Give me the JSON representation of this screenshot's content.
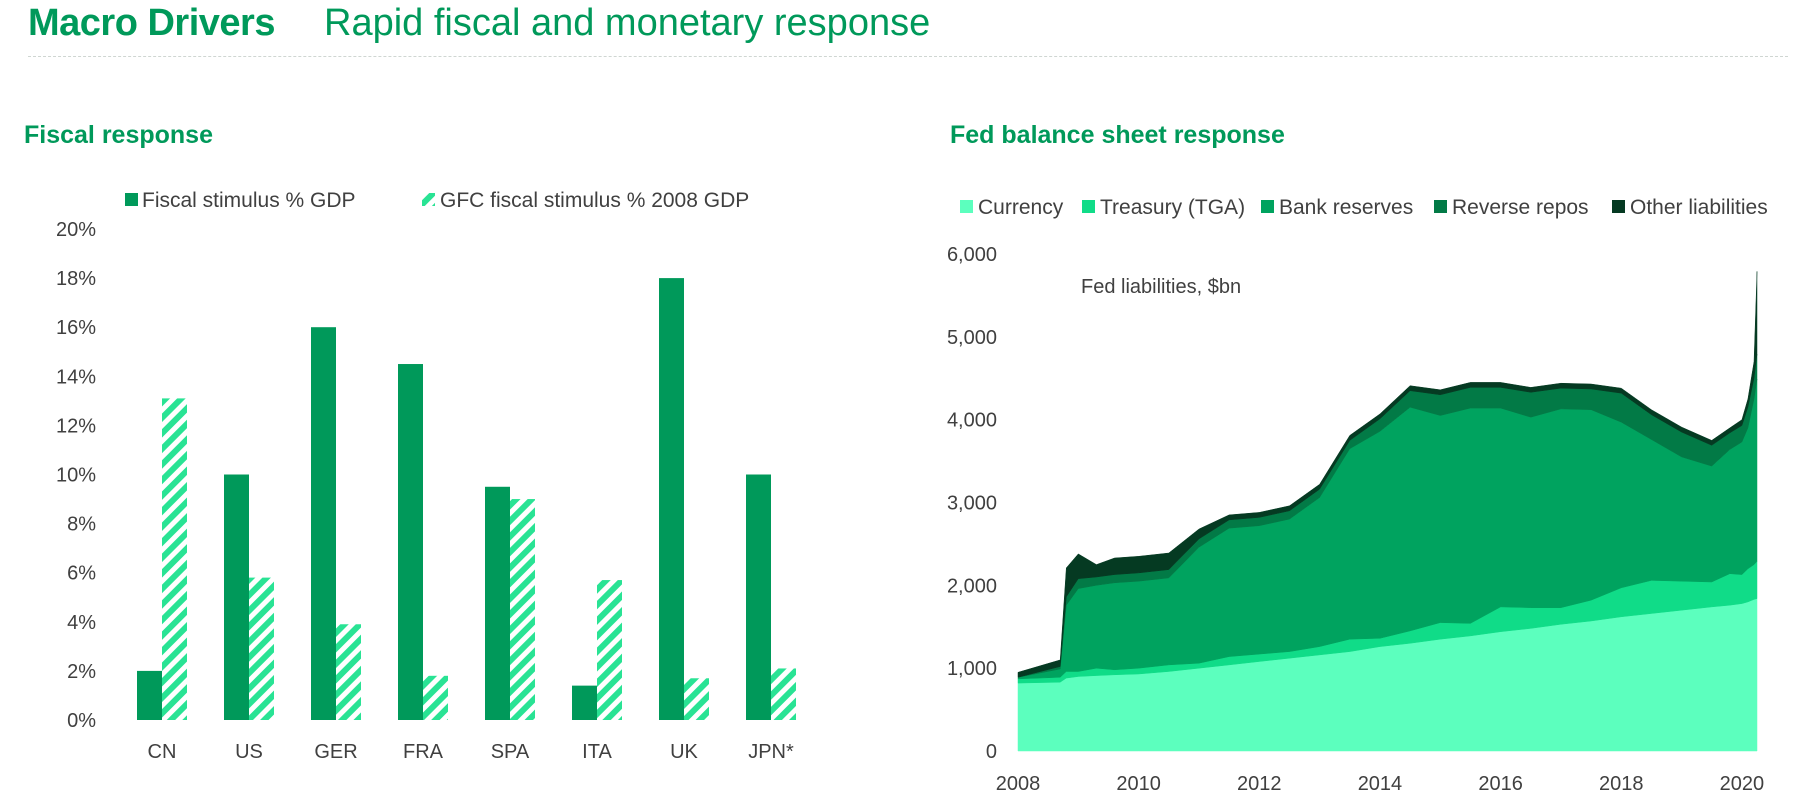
{
  "header": {
    "title_bold": "Macro Drivers",
    "title_light": "Rapid fiscal and monetary response"
  },
  "colors": {
    "brand": "#00995a",
    "fiscal_bar": "#00995a",
    "gfc_bar": "#29e394",
    "currency": "#5cffbe",
    "treasury": "#10dc88",
    "bank_reserves": "#00a35f",
    "reverse_repos": "#027a46",
    "other_liabilities": "#053a22"
  },
  "chart_data": [
    {
      "type": "bar",
      "title": "Fiscal response",
      "categories": [
        "CN",
        "US",
        "GER",
        "FRA",
        "SPA",
        "ITA",
        "UK",
        "JPN*"
      ],
      "series": [
        {
          "name": "Fiscal stimulus % GDP",
          "values": [
            2.0,
            10.0,
            16.0,
            14.5,
            9.5,
            1.4,
            18.0,
            10.0
          ],
          "pattern": "solid"
        },
        {
          "name": "GFC fiscal stimulus % 2008 GDP",
          "values": [
            13.1,
            5.8,
            3.9,
            1.8,
            9.0,
            5.7,
            1.7,
            2.1
          ],
          "pattern": "hatched"
        }
      ],
      "y_ticks": [
        "0%",
        "2%",
        "4%",
        "6%",
        "8%",
        "10%",
        "12%",
        "14%",
        "16%",
        "18%",
        "20%"
      ],
      "ylim": [
        0,
        20
      ],
      "legend_position": "top",
      "grid": false
    },
    {
      "type": "area",
      "stacked": true,
      "title": "Fed balance sheet response",
      "annotation": "Fed liabilities, $bn",
      "x": [
        2008.0,
        2008.7,
        2008.8,
        2009.0,
        2009.3,
        2009.6,
        2010.0,
        2010.5,
        2011.0,
        2011.5,
        2012.0,
        2012.5,
        2013.0,
        2013.5,
        2014.0,
        2014.5,
        2015.0,
        2015.5,
        2016.0,
        2016.5,
        2017.0,
        2017.5,
        2018.0,
        2018.5,
        2019.0,
        2019.5,
        2019.8,
        2020.0,
        2020.1,
        2020.2,
        2020.25
      ],
      "series": [
        {
          "name": "Currency",
          "values": [
            820,
            830,
            880,
            900,
            910,
            920,
            930,
            960,
            1000,
            1040,
            1080,
            1120,
            1160,
            1200,
            1260,
            1300,
            1350,
            1390,
            1440,
            1480,
            1530,
            1570,
            1620,
            1660,
            1700,
            1740,
            1760,
            1780,
            1800,
            1830,
            1840
          ]
        },
        {
          "name": "Treasury (TGA)",
          "values": [
            50,
            60,
            80,
            60,
            90,
            60,
            70,
            80,
            60,
            100,
            90,
            80,
            100,
            150,
            100,
            150,
            200,
            150,
            300,
            250,
            200,
            250,
            350,
            400,
            350,
            300,
            380,
            350,
            400,
            420,
            450
          ]
        },
        {
          "name": "Bank reserves",
          "values": [
            20,
            100,
            800,
            1000,
            1000,
            1050,
            1050,
            1050,
            1400,
            1550,
            1550,
            1600,
            1800,
            2300,
            2500,
            2700,
            2500,
            2600,
            2400,
            2300,
            2400,
            2300,
            2000,
            1700,
            1500,
            1400,
            1500,
            1600,
            1700,
            2000,
            2200
          ]
        },
        {
          "name": "Reverse repos",
          "values": [
            0,
            30,
            100,
            120,
            100,
            100,
            100,
            100,
            100,
            100,
            100,
            100,
            100,
            100,
            150,
            200,
            250,
            250,
            250,
            300,
            250,
            250,
            350,
            300,
            300,
            250,
            200,
            200,
            250,
            250,
            300
          ]
        },
        {
          "name": "Other liabilities",
          "values": [
            60,
            80,
            350,
            300,
            150,
            200,
            200,
            200,
            120,
            60,
            60,
            60,
            60,
            60,
            60,
            60,
            60,
            60,
            60,
            60,
            60,
            60,
            60,
            60,
            60,
            60,
            60,
            70,
            100,
            200,
            1000
          ]
        }
      ],
      "x_ticks": [
        "2008",
        "2010",
        "2012",
        "2014",
        "2016",
        "2018",
        "2020"
      ],
      "x_tick_values": [
        2008,
        2010,
        2012,
        2014,
        2016,
        2018,
        2020
      ],
      "xlim": [
        2008,
        2020.3
      ],
      "y_ticks": [
        "0",
        "1,000",
        "2,000",
        "3,000",
        "4,000",
        "5,000",
        "6,000"
      ],
      "ylim": [
        0,
        6000
      ],
      "legend_position": "top",
      "grid": false
    }
  ]
}
